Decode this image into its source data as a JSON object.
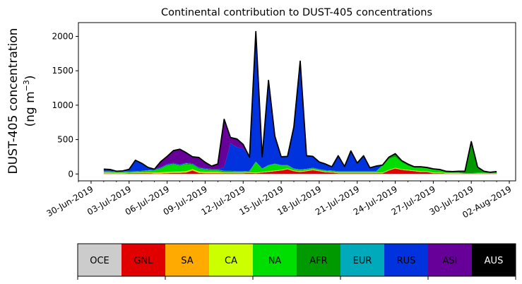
{
  "chart_data": {
    "type": "area",
    "stacked": true,
    "title": "Continental contribution to DUST-405 concentrations",
    "ylabel_line1": "DUST-405 concentration",
    "ylabel_line2_prefix": "(ng m",
    "ylabel_line2_sup": "−3",
    "ylabel_line2_suffix": ")",
    "ylim": [
      -100,
      2200
    ],
    "yticks": [
      0,
      500,
      1000,
      1500,
      2000
    ],
    "xlim_days": [
      -1.0,
      33.5
    ],
    "xticks": [
      {
        "day": 0,
        "label": "30-Jun-2019"
      },
      {
        "day": 3,
        "label": "03-Jul-2019"
      },
      {
        "day": 6,
        "label": "06-Jul-2019"
      },
      {
        "day": 9,
        "label": "09-Jul-2019"
      },
      {
        "day": 12,
        "label": "12-Jul-2019"
      },
      {
        "day": 15,
        "label": "15-Jul-2019"
      },
      {
        "day": 18,
        "label": "18-Jul-2019"
      },
      {
        "day": 21,
        "label": "21-Jul-2019"
      },
      {
        "day": 24,
        "label": "24-Jul-2019"
      },
      {
        "day": 27,
        "label": "27-Jul-2019"
      },
      {
        "day": 30,
        "label": "30-Jul-2019"
      },
      {
        "day": 33,
        "label": "02-Aug-2019"
      }
    ],
    "x_days": [
      1,
      1.5,
      2,
      2.5,
      3,
      3.5,
      4,
      4.5,
      5,
      5.5,
      6,
      6.5,
      7,
      7.5,
      8,
      8.5,
      9,
      9.5,
      10,
      10.5,
      11,
      11.5,
      12,
      12.5,
      13,
      13.5,
      14,
      14.5,
      15,
      15.5,
      16,
      16.5,
      17,
      17.5,
      18,
      18.5,
      19,
      19.5,
      20,
      20.5,
      21,
      21.5,
      22,
      22.5,
      23,
      23.5,
      24,
      24.5,
      25,
      25.5,
      26,
      26.5,
      27,
      27.5,
      28,
      28.5,
      29,
      29.5,
      30,
      30.5,
      31,
      31.5,
      32
    ],
    "series": [
      {
        "name": "OCE",
        "color": "#cccccc",
        "values": [
          0,
          0,
          0,
          0,
          0,
          0,
          0,
          0,
          0,
          0,
          0,
          0,
          0,
          0,
          0,
          0,
          0,
          0,
          0,
          0,
          0,
          0,
          0,
          0,
          0,
          0,
          0,
          0,
          0,
          0,
          0,
          0,
          0,
          0,
          0,
          0,
          0,
          0,
          0,
          0,
          0,
          0,
          0,
          0,
          0,
          0,
          0,
          0,
          0,
          0,
          0,
          0,
          0,
          0,
          0,
          0,
          0,
          0,
          0,
          0,
          0,
          0,
          0
        ]
      },
      {
        "name": "GNL",
        "color": "#e00000",
        "values": [
          5,
          5,
          5,
          5,
          8,
          10,
          10,
          10,
          5,
          5,
          10,
          15,
          15,
          20,
          50,
          15,
          10,
          10,
          10,
          10,
          10,
          10,
          10,
          15,
          10,
          20,
          30,
          40,
          50,
          70,
          40,
          30,
          40,
          55,
          40,
          25,
          20,
          10,
          10,
          10,
          10,
          10,
          10,
          10,
          10,
          50,
          80,
          60,
          50,
          40,
          30,
          30,
          10,
          10,
          5,
          5,
          5,
          5,
          5,
          5,
          5,
          5,
          5
        ]
      },
      {
        "name": "SA",
        "color": "#ffaa00",
        "values": [
          10,
          10,
          5,
          5,
          5,
          5,
          5,
          10,
          10,
          15,
          10,
          10,
          10,
          10,
          10,
          10,
          10,
          10,
          10,
          5,
          5,
          5,
          5,
          5,
          5,
          5,
          5,
          5,
          5,
          5,
          5,
          5,
          5,
          5,
          5,
          5,
          5,
          5,
          5,
          5,
          5,
          5,
          5,
          5,
          5,
          5,
          5,
          5,
          5,
          5,
          5,
          5,
          5,
          5,
          5,
          5,
          5,
          0,
          0,
          5,
          5,
          5,
          5
        ]
      },
      {
        "name": "CA",
        "color": "#ccff00",
        "values": [
          5,
          5,
          5,
          5,
          5,
          5,
          5,
          5,
          5,
          5,
          10,
          10,
          10,
          10,
          10,
          10,
          10,
          10,
          10,
          5,
          5,
          5,
          5,
          5,
          5,
          5,
          5,
          5,
          5,
          5,
          5,
          5,
          5,
          5,
          5,
          5,
          5,
          5,
          5,
          5,
          5,
          5,
          5,
          5,
          5,
          5,
          5,
          5,
          5,
          5,
          5,
          5,
          5,
          5,
          5,
          5,
          5,
          0,
          0,
          0,
          0,
          0,
          0
        ]
      },
      {
        "name": "NA",
        "color": "#00dd00",
        "values": [
          10,
          10,
          10,
          10,
          10,
          10,
          15,
          20,
          30,
          50,
          90,
          100,
          80,
          100,
          60,
          40,
          30,
          20,
          20,
          10,
          10,
          10,
          10,
          10,
          150,
          40,
          80,
          90,
          60,
          40,
          20,
          15,
          15,
          15,
          10,
          10,
          10,
          10,
          10,
          10,
          10,
          10,
          10,
          10,
          100,
          160,
          160,
          100,
          60,
          40,
          50,
          40,
          40,
          30,
          10,
          5,
          5,
          5,
          5,
          10,
          10,
          5,
          5
        ]
      },
      {
        "name": "AFR",
        "color": "#009900",
        "values": [
          5,
          5,
          5,
          5,
          5,
          5,
          5,
          5,
          5,
          10,
          10,
          10,
          10,
          10,
          10,
          10,
          10,
          10,
          10,
          10,
          10,
          5,
          5,
          5,
          5,
          5,
          5,
          5,
          5,
          5,
          5,
          5,
          5,
          5,
          5,
          5,
          5,
          5,
          5,
          5,
          5,
          5,
          5,
          5,
          5,
          20,
          40,
          20,
          20,
          10,
          10,
          10,
          10,
          10,
          10,
          10,
          15,
          30,
          460,
          80,
          20,
          10,
          20
        ]
      },
      {
        "name": "EUR",
        "color": "#00aabb",
        "values": [
          5,
          5,
          5,
          5,
          5,
          5,
          5,
          5,
          5,
          5,
          5,
          5,
          5,
          5,
          5,
          5,
          5,
          5,
          5,
          5,
          5,
          5,
          5,
          5,
          5,
          5,
          5,
          5,
          5,
          5,
          5,
          5,
          5,
          5,
          5,
          5,
          5,
          5,
          5,
          5,
          5,
          5,
          5,
          5,
          5,
          5,
          5,
          5,
          5,
          5,
          5,
          5,
          5,
          5,
          5,
          5,
          5,
          0,
          0,
          0,
          0,
          0,
          0
        ]
      },
      {
        "name": "RUS",
        "color": "#0033dd",
        "values": [
          20,
          15,
          5,
          10,
          30,
          160,
          110,
          40,
          10,
          10,
          10,
          10,
          10,
          10,
          10,
          10,
          10,
          10,
          10,
          50,
          400,
          350,
          330,
          200,
          1890,
          170,
          1230,
          400,
          120,
          125,
          605,
          1575,
          190,
          165,
          105,
          90,
          55,
          225,
          70,
          295,
          120,
          225,
          50,
          75,
          0,
          0,
          0,
          0,
          0,
          0,
          0,
          0,
          0,
          0,
          0,
          0,
          0,
          0,
          0,
          0,
          0,
          0,
          0
        ]
      },
      {
        "name": "ASI",
        "color": "#660099",
        "values": [
          10,
          10,
          0,
          0,
          0,
          0,
          0,
          0,
          0,
          80,
          110,
          180,
          220,
          145,
          95,
          140,
          85,
          40,
          70,
          700,
          85,
          120,
          60,
          0,
          0,
          0,
          0,
          0,
          0,
          0,
          0,
          0,
          0,
          0,
          0,
          0,
          0,
          0,
          0,
          0,
          0,
          0,
          0,
          0,
          0,
          0,
          0,
          0,
          0,
          0,
          0,
          0,
          0,
          0,
          0,
          0,
          0,
          0,
          0,
          0,
          0,
          0,
          0
        ]
      },
      {
        "name": "AUS",
        "color": "#000000",
        "values": [
          0,
          0,
          0,
          0,
          0,
          0,
          0,
          0,
          0,
          0,
          0,
          0,
          0,
          0,
          0,
          0,
          0,
          0,
          0,
          0,
          0,
          0,
          0,
          0,
          0,
          0,
          0,
          0,
          0,
          0,
          0,
          0,
          0,
          0,
          0,
          0,
          0,
          0,
          0,
          0,
          0,
          0,
          0,
          0,
          0,
          0,
          0,
          0,
          0,
          0,
          0,
          0,
          0,
          0,
          0,
          0,
          0,
          0,
          0,
          0,
          0,
          0,
          0
        ]
      }
    ],
    "legend": [
      {
        "label": "OCE",
        "color": "#cccccc",
        "text_color": "#000000"
      },
      {
        "label": "GNL",
        "color": "#e00000",
        "text_color": "#000000"
      },
      {
        "label": "SA",
        "color": "#ffaa00",
        "text_color": "#000000"
      },
      {
        "label": "CA",
        "color": "#ccff00",
        "text_color": "#000000"
      },
      {
        "label": "NA",
        "color": "#00dd00",
        "text_color": "#000000"
      },
      {
        "label": "AFR",
        "color": "#009900",
        "text_color": "#000000"
      },
      {
        "label": "EUR",
        "color": "#00aabb",
        "text_color": "#000000"
      },
      {
        "label": "RUS",
        "color": "#0033dd",
        "text_color": "#000000"
      },
      {
        "label": "ASI",
        "color": "#660099",
        "text_color": "#000000"
      },
      {
        "label": "AUS",
        "color": "#000000",
        "text_color": "#ffffff"
      }
    ],
    "legend_placement": "bottom",
    "grid": false,
    "outline_color": "#000000"
  }
}
